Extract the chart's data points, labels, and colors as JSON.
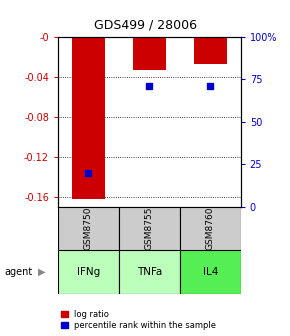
{
  "title": "GDS499 / 28006",
  "ylim_left": [
    -0.17,
    0.0
  ],
  "ylim_right": [
    0,
    100
  ],
  "yticks_left": [
    0.0,
    -0.04,
    -0.08,
    -0.12,
    -0.16
  ],
  "yticks_left_labels": [
    "-0",
    "-0.04",
    "-0.08",
    "-0.12",
    "-0.16"
  ],
  "yticks_right": [
    0,
    25,
    50,
    75,
    100
  ],
  "yticks_right_labels": [
    "0",
    "25",
    "50",
    "75",
    "100%"
  ],
  "samples": [
    "GSM8750",
    "GSM8755",
    "GSM8760"
  ],
  "agents": [
    "IFNg",
    "TNFa",
    "IL4"
  ],
  "log_ratios": [
    -0.162,
    -0.033,
    -0.027
  ],
  "percentile_ranks": [
    20,
    71,
    71
  ],
  "bar_color": "#cc0000",
  "point_color": "#0000cc",
  "bar_width": 0.55,
  "agent_colors": [
    "#bbffbb",
    "#bbffbb",
    "#55ee55"
  ],
  "sample_box_color": "#cccccc",
  "left_axis_color": "#cc0000",
  "right_axis_color": "#0000cc",
  "legend_bar_label": "log ratio",
  "legend_point_label": "percentile rank within the sample",
  "agent_label": "agent"
}
